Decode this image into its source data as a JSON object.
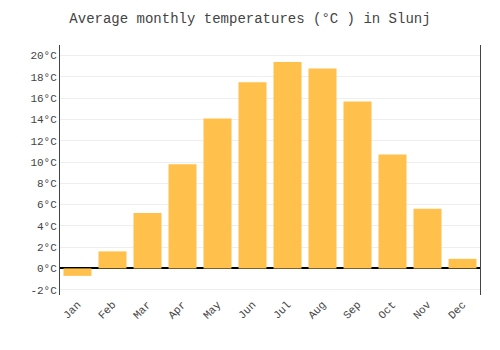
{
  "chart_data": {
    "type": "bar",
    "title": "Average monthly temperatures (°C ) in Slunj",
    "categories": [
      "Jan",
      "Feb",
      "Mar",
      "Apr",
      "May",
      "Jun",
      "Jul",
      "Aug",
      "Sep",
      "Oct",
      "Nov",
      "Dec"
    ],
    "values": [
      -0.7,
      1.6,
      5.2,
      9.8,
      14.1,
      17.5,
      19.4,
      18.8,
      15.7,
      10.7,
      5.6,
      0.9
    ],
    "color": "#FFC04C",
    "ylim": [
      -2.5,
      21
    ],
    "yticks": [
      {
        "value": -2,
        "label": "-2°C"
      },
      {
        "value": 0,
        "label": "0°C"
      },
      {
        "value": 2,
        "label": "2°C"
      },
      {
        "value": 4,
        "label": "4°C"
      },
      {
        "value": 6,
        "label": "6°C"
      },
      {
        "value": 8,
        "label": "8°C"
      },
      {
        "value": 10,
        "label": "10°C"
      },
      {
        "value": 12,
        "label": "12°C"
      },
      {
        "value": 14,
        "label": "14°C"
      },
      {
        "value": 16,
        "label": "16°C"
      },
      {
        "value": 18,
        "label": "18°C"
      },
      {
        "value": 20,
        "label": "20°C"
      }
    ],
    "grid": true
  }
}
